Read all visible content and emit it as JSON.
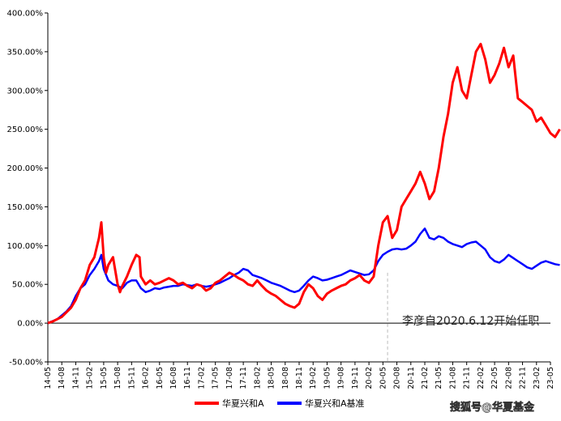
{
  "chart_data": {
    "type": "line",
    "xlabel": "",
    "ylabel": "",
    "ylim": [
      -50,
      400
    ],
    "y_ticks": [
      -50,
      0,
      50,
      100,
      150,
      200,
      250,
      300,
      350,
      400
    ],
    "y_tick_labels": [
      "-50.00%",
      "0.00%",
      "50.00%",
      "100.00%",
      "150.00%",
      "200.00%",
      "250.00%",
      "300.00%",
      "350.00%",
      "400.00%"
    ],
    "x_tick_labels": [
      "14-05",
      "14-08",
      "14-11",
      "15-02",
      "15-05",
      "15-08",
      "15-11",
      "16-02",
      "16-05",
      "16-08",
      "16-11",
      "17-02",
      "17-05",
      "17-08",
      "17-11",
      "18-02",
      "18-05",
      "18-08",
      "18-11",
      "19-02",
      "19-05",
      "19-08",
      "19-11",
      "20-02",
      "20-05",
      "20-08",
      "20-11",
      "21-02",
      "21-05",
      "21-08",
      "21-11",
      "22-02",
      "22-05",
      "22-08",
      "22-11",
      "23-02",
      "23-05"
    ],
    "x_unit": "months since 2014-05",
    "grid": false,
    "legend_position": "bottom-center",
    "series": [
      {
        "name": "华夏兴和A",
        "color": "#ff0000",
        "points": [
          [
            0,
            0
          ],
          [
            1,
            2
          ],
          [
            3,
            8
          ],
          [
            5,
            20
          ],
          [
            6,
            30
          ],
          [
            7,
            45
          ],
          [
            8,
            55
          ],
          [
            9,
            75
          ],
          [
            10,
            85
          ],
          [
            11,
            110
          ],
          [
            11.5,
            130
          ],
          [
            12,
            85
          ],
          [
            12.5,
            65
          ],
          [
            13,
            75
          ],
          [
            14,
            85
          ],
          [
            15,
            50
          ],
          [
            15.5,
            40
          ],
          [
            16,
            48
          ],
          [
            17,
            60
          ],
          [
            18,
            75
          ],
          [
            19,
            88
          ],
          [
            19.7,
            85
          ],
          [
            20,
            60
          ],
          [
            21,
            50
          ],
          [
            22,
            55
          ],
          [
            23,
            50
          ],
          [
            24,
            52
          ],
          [
            25,
            55
          ],
          [
            26,
            58
          ],
          [
            27,
            55
          ],
          [
            28,
            50
          ],
          [
            29,
            52
          ],
          [
            30,
            48
          ],
          [
            31,
            45
          ],
          [
            32,
            50
          ],
          [
            33,
            48
          ],
          [
            34,
            42
          ],
          [
            35,
            45
          ],
          [
            36,
            52
          ],
          [
            37,
            55
          ],
          [
            38,
            60
          ],
          [
            39,
            65
          ],
          [
            40,
            62
          ],
          [
            41,
            58
          ],
          [
            42,
            55
          ],
          [
            43,
            50
          ],
          [
            44,
            48
          ],
          [
            45,
            55
          ],
          [
            46,
            48
          ],
          [
            47,
            42
          ],
          [
            48,
            38
          ],
          [
            49,
            35
          ],
          [
            50,
            30
          ],
          [
            51,
            25
          ],
          [
            52,
            22
          ],
          [
            53,
            20
          ],
          [
            54,
            25
          ],
          [
            55,
            40
          ],
          [
            56,
            50
          ],
          [
            57,
            45
          ],
          [
            58,
            35
          ],
          [
            59,
            30
          ],
          [
            60,
            38
          ],
          [
            61,
            42
          ],
          [
            62,
            45
          ],
          [
            63,
            48
          ],
          [
            64,
            50
          ],
          [
            65,
            55
          ],
          [
            66,
            58
          ],
          [
            67,
            62
          ],
          [
            68,
            55
          ],
          [
            69,
            52
          ],
          [
            70,
            60
          ],
          [
            71,
            100
          ],
          [
            72,
            130
          ],
          [
            73,
            138
          ],
          [
            74,
            110
          ],
          [
            75,
            120
          ],
          [
            76,
            150
          ],
          [
            77,
            160
          ],
          [
            78,
            170
          ],
          [
            79,
            180
          ],
          [
            80,
            195
          ],
          [
            81,
            180
          ],
          [
            82,
            160
          ],
          [
            83,
            170
          ],
          [
            84,
            200
          ],
          [
            85,
            240
          ],
          [
            86,
            270
          ],
          [
            87,
            310
          ],
          [
            88,
            330
          ],
          [
            89,
            300
          ],
          [
            90,
            290
          ],
          [
            91,
            320
          ],
          [
            92,
            350
          ],
          [
            93,
            360
          ],
          [
            94,
            340
          ],
          [
            95,
            310
          ],
          [
            96,
            320
          ],
          [
            97,
            335
          ],
          [
            98,
            355
          ],
          [
            99,
            330
          ],
          [
            100,
            345
          ],
          [
            101,
            290
          ],
          [
            102,
            285
          ],
          [
            103,
            280
          ],
          [
            104,
            275
          ],
          [
            105,
            260
          ],
          [
            106,
            265
          ],
          [
            107,
            255
          ],
          [
            108,
            245
          ],
          [
            109,
            240
          ],
          [
            110,
            250
          ]
        ]
      },
      {
        "name": "华夏兴和A基准",
        "color": "#0000ff",
        "points": [
          [
            0,
            0
          ],
          [
            2,
            5
          ],
          [
            4,
            15
          ],
          [
            5,
            22
          ],
          [
            6,
            35
          ],
          [
            7,
            45
          ],
          [
            8,
            50
          ],
          [
            9,
            62
          ],
          [
            10,
            70
          ],
          [
            11,
            80
          ],
          [
            11.5,
            88
          ],
          [
            12,
            70
          ],
          [
            13,
            55
          ],
          [
            14,
            50
          ],
          [
            15,
            48
          ],
          [
            16,
            45
          ],
          [
            17,
            52
          ],
          [
            18,
            55
          ],
          [
            19,
            55
          ],
          [
            20,
            45
          ],
          [
            21,
            40
          ],
          [
            22,
            42
          ],
          [
            23,
            45
          ],
          [
            24,
            44
          ],
          [
            25,
            46
          ],
          [
            26,
            47
          ],
          [
            27,
            48
          ],
          [
            28,
            48
          ],
          [
            29,
            50
          ],
          [
            30,
            49
          ],
          [
            31,
            48
          ],
          [
            32,
            50
          ],
          [
            33,
            48
          ],
          [
            34,
            47
          ],
          [
            35,
            48
          ],
          [
            36,
            50
          ],
          [
            37,
            52
          ],
          [
            38,
            55
          ],
          [
            39,
            58
          ],
          [
            40,
            62
          ],
          [
            41,
            65
          ],
          [
            42,
            70
          ],
          [
            43,
            68
          ],
          [
            44,
            62
          ],
          [
            45,
            60
          ],
          [
            46,
            58
          ],
          [
            47,
            55
          ],
          [
            48,
            52
          ],
          [
            49,
            50
          ],
          [
            50,
            48
          ],
          [
            51,
            45
          ],
          [
            52,
            42
          ],
          [
            53,
            40
          ],
          [
            54,
            42
          ],
          [
            55,
            48
          ],
          [
            56,
            55
          ],
          [
            57,
            60
          ],
          [
            58,
            58
          ],
          [
            59,
            55
          ],
          [
            60,
            56
          ],
          [
            61,
            58
          ],
          [
            62,
            60
          ],
          [
            63,
            62
          ],
          [
            64,
            65
          ],
          [
            65,
            68
          ],
          [
            66,
            66
          ],
          [
            67,
            64
          ],
          [
            68,
            62
          ],
          [
            69,
            63
          ],
          [
            70,
            68
          ],
          [
            71,
            80
          ],
          [
            72,
            88
          ],
          [
            73,
            92
          ],
          [
            74,
            95
          ],
          [
            75,
            96
          ],
          [
            76,
            95
          ],
          [
            77,
            96
          ],
          [
            78,
            100
          ],
          [
            79,
            105
          ],
          [
            80,
            115
          ],
          [
            81,
            122
          ],
          [
            82,
            110
          ],
          [
            83,
            108
          ],
          [
            84,
            112
          ],
          [
            85,
            110
          ],
          [
            86,
            105
          ],
          [
            87,
            102
          ],
          [
            88,
            100
          ],
          [
            89,
            98
          ],
          [
            90,
            102
          ],
          [
            91,
            104
          ],
          [
            92,
            105
          ],
          [
            93,
            100
          ],
          [
            94,
            95
          ],
          [
            95,
            85
          ],
          [
            96,
            80
          ],
          [
            97,
            78
          ],
          [
            98,
            82
          ],
          [
            99,
            88
          ],
          [
            100,
            84
          ],
          [
            101,
            80
          ],
          [
            102,
            76
          ],
          [
            103,
            72
          ],
          [
            104,
            70
          ],
          [
            105,
            74
          ],
          [
            106,
            78
          ],
          [
            107,
            80
          ],
          [
            108,
            78
          ],
          [
            109,
            76
          ],
          [
            110,
            75
          ]
        ]
      }
    ],
    "annotations": [
      {
        "text": "李彦自2020.6.12开始任职",
        "x": 73,
        "dashed_vertical_line": true
      }
    ]
  },
  "watermark": "搜狐号@华夏基金"
}
